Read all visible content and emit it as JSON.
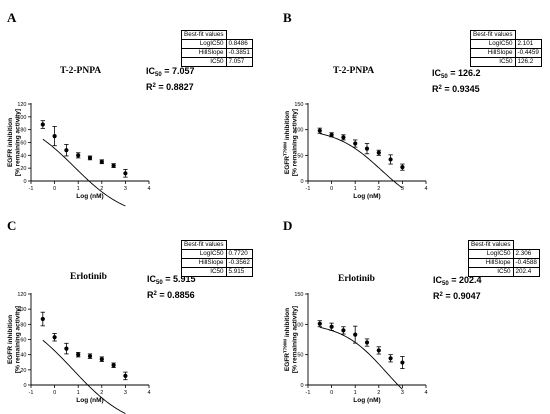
{
  "chart_data": [
    {
      "type": "scatter",
      "panel": "A",
      "title": "T-2-PNPA",
      "ic50_label": "IC",
      "ic50_sub": "50",
      "ic50_value": "= 7.057",
      "r2_label": "R",
      "r2_sup": "2",
      "r2_value": "= 0.8827",
      "table": {
        "header": "Best-fit values",
        "rows": [
          [
            "LogIC50",
            "0.8486"
          ],
          [
            "HillSlope",
            "-0.3851"
          ],
          [
            "IC50",
            "7.057"
          ]
        ]
      },
      "xlabel": "Log (nM)",
      "ylabel_line1": "EGFR inhibition",
      "ylabel_line1_sup": "",
      "ylabel_line1_rest": "",
      "ylabel_line2": "[% remaining activity]",
      "xlim": [
        -1,
        4
      ],
      "ylim": [
        0,
        120
      ],
      "xticks": [
        -1,
        0,
        1,
        2,
        3,
        4
      ],
      "yticks": [
        0,
        20,
        40,
        60,
        80,
        100,
        120
      ],
      "points": [
        {
          "x": -0.5,
          "y": 88,
          "err": 6
        },
        {
          "x": 0,
          "y": 70,
          "err": 15
        },
        {
          "x": 0.5,
          "y": 48,
          "err": 9
        },
        {
          "x": 1,
          "y": 40,
          "err": 4
        },
        {
          "x": 1.5,
          "y": 36,
          "err": 3
        },
        {
          "x": 2,
          "y": 30,
          "err": 3
        },
        {
          "x": 2.5,
          "y": 24,
          "err": 3
        },
        {
          "x": 3,
          "y": 12,
          "err": 6
        }
      ],
      "fit": {
        "top": 103,
        "bottom": -60,
        "logic50": 0.8486,
        "hill": -0.3851,
        "xmin": -0.5,
        "xmax": 3
      }
    },
    {
      "type": "scatter",
      "panel": "B",
      "title": "T-2-PNPA",
      "ic50_label": "IC",
      "ic50_sub": "50",
      "ic50_value": "= 126.2",
      "r2_label": "R",
      "r2_sup": "2",
      "r2_value": "= 0.9345",
      "table": {
        "header": "Best-fit values",
        "rows": [
          [
            "LogIC50",
            "2.101"
          ],
          [
            "HillSlope",
            "-0.4459"
          ],
          [
            "IC50",
            "126.2"
          ]
        ]
      },
      "xlabel": "Log (nM)",
      "ylabel_line1": "EGFR",
      "ylabel_line1_sup": "T790M",
      "ylabel_line1_rest": " inhibition",
      "ylabel_line2": "[% remaining activity]",
      "xlim": [
        -1,
        4
      ],
      "ylim": [
        0,
        150
      ],
      "xticks": [
        -1,
        0,
        1,
        2,
        3,
        4
      ],
      "yticks": [
        0,
        50,
        100,
        150
      ],
      "points": [
        {
          "x": -0.5,
          "y": 98,
          "err": 5
        },
        {
          "x": 0,
          "y": 90,
          "err": 4
        },
        {
          "x": 0.5,
          "y": 85,
          "err": 5
        },
        {
          "x": 1,
          "y": 73,
          "err": 7
        },
        {
          "x": 1.5,
          "y": 63,
          "err": 10
        },
        {
          "x": 2,
          "y": 55,
          "err": 5
        },
        {
          "x": 2.5,
          "y": 42,
          "err": 9
        },
        {
          "x": 3,
          "y": 27,
          "err": 6
        }
      ],
      "fit": {
        "top": 103,
        "bottom": -60,
        "logic50": 2.101,
        "hill": -0.4459,
        "xmin": -0.5,
        "xmax": 3
      }
    },
    {
      "type": "scatter",
      "panel": "C",
      "title": "Erlotinib",
      "ic50_label": "IC",
      "ic50_sub": "50",
      "ic50_value": "= 5.915",
      "r2_label": "R",
      "r2_sup": "2",
      "r2_value": "= 0.8856",
      "table": {
        "header": "Best-fit values",
        "rows": [
          [
            "LogIC50",
            "0.7720"
          ],
          [
            "HillSlope",
            "-0.3562"
          ],
          [
            "IC50",
            "5.915"
          ]
        ]
      },
      "xlabel": "Log (nM)",
      "ylabel_line1": "EGFR inhibition",
      "ylabel_line1_sup": "",
      "ylabel_line1_rest": "",
      "ylabel_line2": "[% remaining activity]",
      "xlim": [
        -1,
        4
      ],
      "ylim": [
        0,
        120
      ],
      "xticks": [
        -1,
        0,
        1,
        2,
        3,
        4
      ],
      "yticks": [
        0,
        20,
        40,
        60,
        80,
        100,
        120
      ],
      "points": [
        {
          "x": -0.5,
          "y": 87,
          "err": 9
        },
        {
          "x": 0,
          "y": 63,
          "err": 5
        },
        {
          "x": 0.5,
          "y": 48,
          "err": 7
        },
        {
          "x": 1,
          "y": 40,
          "err": 3
        },
        {
          "x": 1.5,
          "y": 38,
          "err": 3
        },
        {
          "x": 2,
          "y": 34,
          "err": 3
        },
        {
          "x": 2.5,
          "y": 26,
          "err": 3
        },
        {
          "x": 3,
          "y": 12,
          "err": 5
        }
      ],
      "fit": {
        "top": 101,
        "bottom": -60,
        "logic50": 0.772,
        "hill": -0.3562,
        "xmin": -0.5,
        "xmax": 3
      }
    },
    {
      "type": "scatter",
      "panel": "D",
      "title": "Erlotinib",
      "ic50_label": "IC",
      "ic50_sub": "50",
      "ic50_value": "= 202.4",
      "r2_label": "R",
      "r2_sup": "2",
      "r2_value": "= 0.9047",
      "table": {
        "header": "Best-fit values",
        "rows": [
          [
            "LogIC50",
            "2.306"
          ],
          [
            "HillSlope",
            "-0.4588"
          ],
          [
            "IC50",
            "202.4"
          ]
        ]
      },
      "xlabel": "Log (nM)",
      "ylabel_line1": "EGFR",
      "ylabel_line1_sup": "T790M",
      "ylabel_line1_rest": " inhibition",
      "ylabel_line2": "[% remaining activity]",
      "xlim": [
        -1,
        4
      ],
      "ylim": [
        0,
        150
      ],
      "xticks": [
        -1,
        0,
        1,
        2,
        3,
        4
      ],
      "yticks": [
        0,
        50,
        100,
        150
      ],
      "points": [
        {
          "x": -0.5,
          "y": 101,
          "err": 5
        },
        {
          "x": 0,
          "y": 96,
          "err": 6
        },
        {
          "x": 0.5,
          "y": 90,
          "err": 6
        },
        {
          "x": 1,
          "y": 83,
          "err": 14
        },
        {
          "x": 1.5,
          "y": 70,
          "err": 6
        },
        {
          "x": 2,
          "y": 57,
          "err": 6
        },
        {
          "x": 2.5,
          "y": 44,
          "err": 6
        },
        {
          "x": 3,
          "y": 37,
          "err": 10
        }
      ],
      "fit": {
        "top": 103,
        "bottom": -60,
        "logic50": 2.306,
        "hill": -0.4588,
        "xmin": -0.5,
        "xmax": 3
      }
    }
  ]
}
